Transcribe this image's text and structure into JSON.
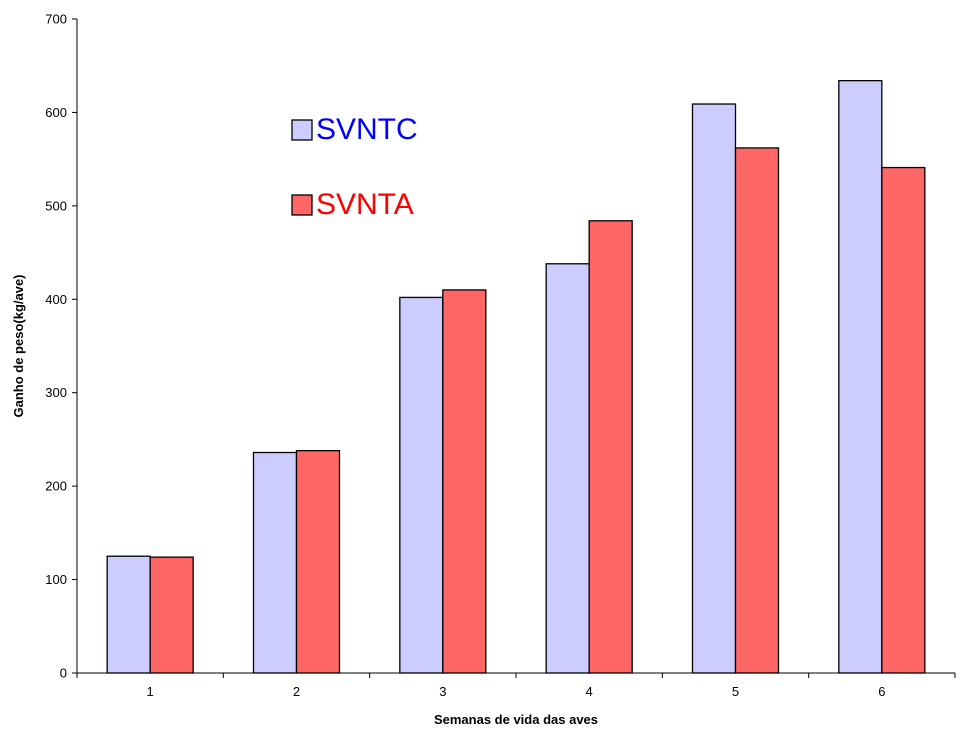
{
  "chart_data": {
    "type": "bar",
    "categories": [
      "1",
      "2",
      "3",
      "4",
      "5",
      "6"
    ],
    "series": [
      {
        "name": "SVNTC",
        "values": [
          125,
          236,
          402,
          438,
          609,
          634
        ],
        "color": "#ccccff",
        "label_color": "#0000ff"
      },
      {
        "name": "SVNTA",
        "values": [
          124,
          238,
          410,
          484,
          562,
          541
        ],
        "color": "#ff6666",
        "label_color": "#ff0000"
      }
    ],
    "title": "",
    "xlabel": "Semanas de vida das aves",
    "ylabel": "Ganho de peso(kg/ave)",
    "ylim": [
      0,
      700
    ],
    "yticks": [
      0,
      100,
      200,
      300,
      400,
      500,
      600,
      700
    ],
    "grid": false,
    "legend_position": "upper-left"
  }
}
